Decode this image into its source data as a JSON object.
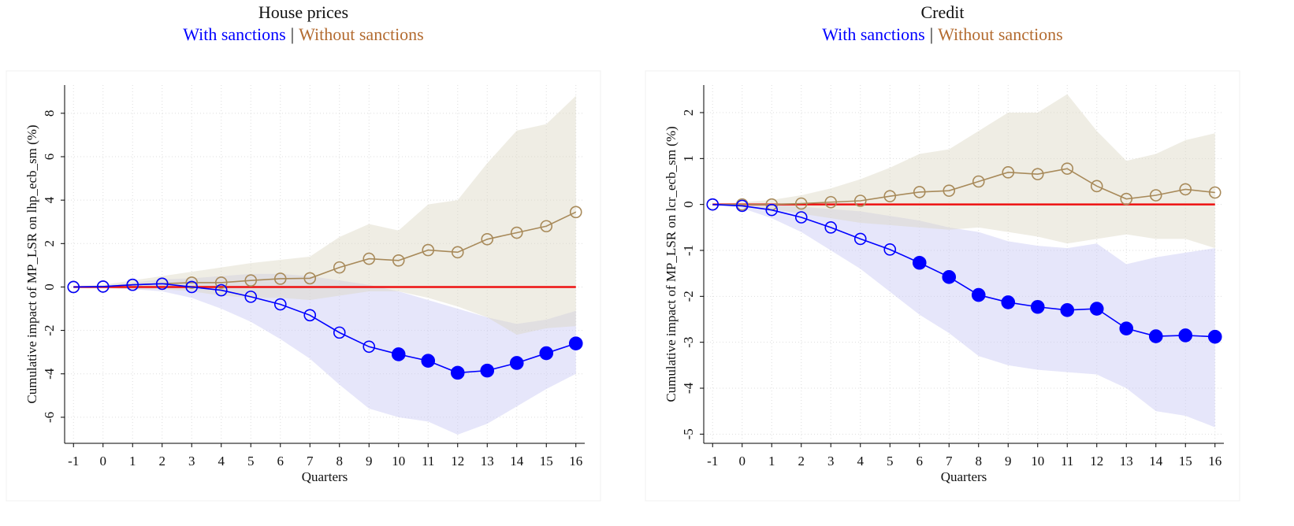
{
  "chart_data": [
    {
      "type": "line",
      "title": "House prices",
      "legend_separator": "|",
      "xlabel": "Quarters",
      "ylabel": "Cumulative impact of MP_LSR on lhp_ecb_sm (%)",
      "x": [
        -1,
        0,
        1,
        2,
        3,
        4,
        5,
        6,
        7,
        8,
        9,
        10,
        11,
        12,
        13,
        14,
        15,
        16
      ],
      "xlim": [
        -1.3,
        16.3
      ],
      "xticks": [
        -1,
        0,
        1,
        2,
        3,
        4,
        5,
        6,
        7,
        8,
        9,
        10,
        11,
        12,
        13,
        14,
        15,
        16
      ],
      "ylim": [
        -7.2,
        9.3
      ],
      "yticks": [
        -6,
        -4,
        -2,
        0,
        2,
        4,
        6,
        8
      ],
      "grid": true,
      "reference_line": {
        "value": 0,
        "color": "#ee1111"
      },
      "series": [
        {
          "name": "With sanctions",
          "color": "#0000ff",
          "band_color": "#c8c8f4",
          "values": [
            0,
            0.02,
            0.1,
            0.15,
            0,
            -0.15,
            -0.45,
            -0.8,
            -1.3,
            -2.1,
            -2.75,
            -3.1,
            -3.4,
            -3.95,
            -3.85,
            -3.5,
            -3.05,
            -2.6
          ],
          "filled": [
            false,
            false,
            false,
            false,
            false,
            false,
            false,
            false,
            false,
            false,
            false,
            true,
            true,
            true,
            true,
            true,
            true,
            true
          ],
          "upper": [
            0,
            0.05,
            0.2,
            0.35,
            0.4,
            0.5,
            0.6,
            0.6,
            0.5,
            0.3,
            0.1,
            -0.2,
            -0.6,
            -1,
            -1.4,
            -1.7,
            -1.5,
            -1.1
          ],
          "lower": [
            0,
            -0.05,
            -0.1,
            -0.2,
            -0.5,
            -1,
            -1.6,
            -2.4,
            -3.3,
            -4.5,
            -5.6,
            -6,
            -6.2,
            -6.8,
            -6.3,
            -5.5,
            -4.7,
            -4
          ]
        },
        {
          "name": "Without sanctions",
          "color": "#a88a5a",
          "text_color": "#b36b30",
          "band_color": "#dcd8c4",
          "values": [
            0,
            0.02,
            0.1,
            0.15,
            0.2,
            0.2,
            0.3,
            0.38,
            0.4,
            0.9,
            1.3,
            1.22,
            1.7,
            1.6,
            2.2,
            2.5,
            2.8,
            3.45
          ],
          "filled": [
            false,
            false,
            false,
            false,
            false,
            false,
            false,
            false,
            false,
            false,
            false,
            false,
            false,
            false,
            false,
            false,
            false,
            false
          ],
          "upper": [
            0,
            0.1,
            0.3,
            0.5,
            0.7,
            0.9,
            1.1,
            1.25,
            1.4,
            2.3,
            2.9,
            2.6,
            3.8,
            4,
            5.7,
            7.2,
            7.5,
            8.8
          ],
          "lower": [
            0,
            -0.05,
            -0.1,
            -0.1,
            -0.2,
            -0.4,
            -0.5,
            -0.5,
            -0.6,
            -0.4,
            -0.2,
            -0.2,
            -0.5,
            -0.9,
            -1.4,
            -2.2,
            -1.9,
            -1.8
          ]
        }
      ]
    },
    {
      "type": "line",
      "title": "Credit",
      "legend_separator": "|",
      "xlabel": "Quarters",
      "ylabel": "Cumulative impact of MP_LSR on lcr_ecb_sm (%)",
      "x": [
        -1,
        0,
        1,
        2,
        3,
        4,
        5,
        6,
        7,
        8,
        9,
        10,
        11,
        12,
        13,
        14,
        15,
        16
      ],
      "xlim": [
        -1.3,
        16.3
      ],
      "xticks": [
        -1,
        0,
        1,
        2,
        3,
        4,
        5,
        6,
        7,
        8,
        9,
        10,
        11,
        12,
        13,
        14,
        15,
        16
      ],
      "ylim": [
        -5.2,
        2.6
      ],
      "yticks": [
        -5,
        -4,
        -3,
        -2,
        -1,
        0,
        1,
        2
      ],
      "grid": true,
      "reference_line": {
        "value": 0,
        "color": "#ee1111"
      },
      "series": [
        {
          "name": "With sanctions",
          "color": "#0000ff",
          "band_color": "#c8c8f4",
          "values": [
            0,
            -0.03,
            -0.12,
            -0.28,
            -0.5,
            -0.75,
            -0.98,
            -1.27,
            -1.58,
            -1.97,
            -2.13,
            -2.23,
            -2.3,
            -2.27,
            -2.7,
            -2.87,
            -2.85,
            -2.88
          ],
          "filled": [
            false,
            false,
            false,
            false,
            false,
            false,
            false,
            true,
            true,
            true,
            true,
            true,
            true,
            true,
            true,
            true,
            true,
            true
          ],
          "upper": [
            0,
            0.02,
            0,
            -0.05,
            -0.1,
            -0.15,
            -0.25,
            -0.35,
            -0.5,
            -0.6,
            -0.8,
            -0.9,
            -0.95,
            -0.85,
            -1.3,
            -1.15,
            -1.05,
            -0.95
          ],
          "lower": [
            0,
            -0.08,
            -0.3,
            -0.6,
            -1,
            -1.4,
            -1.9,
            -2.4,
            -2.8,
            -3.3,
            -3.5,
            -3.6,
            -3.65,
            -3.7,
            -4,
            -4.5,
            -4.6,
            -4.85
          ]
        },
        {
          "name": "Without sanctions",
          "color": "#a88a5a",
          "text_color": "#b36b30",
          "band_color": "#dcd8c4",
          "values": [
            0,
            0,
            0,
            0.02,
            0.05,
            0.08,
            0.18,
            0.27,
            0.3,
            0.5,
            0.7,
            0.66,
            0.78,
            0.4,
            0.12,
            0.2,
            0.33,
            0.26
          ],
          "filled": [
            false,
            false,
            false,
            false,
            false,
            false,
            false,
            false,
            false,
            false,
            false,
            false,
            false,
            false,
            false,
            false,
            false,
            false
          ],
          "upper": [
            0,
            0.05,
            0.1,
            0.2,
            0.35,
            0.55,
            0.8,
            1.1,
            1.2,
            1.6,
            2,
            2,
            2.4,
            1.6,
            0.95,
            1.1,
            1.4,
            1.55
          ],
          "lower": [
            0,
            -0.05,
            -0.1,
            -0.2,
            -0.3,
            -0.4,
            -0.45,
            -0.5,
            -0.55,
            -0.5,
            -0.6,
            -0.7,
            -0.85,
            -0.75,
            -0.65,
            -0.75,
            -0.75,
            -0.95
          ]
        }
      ]
    }
  ]
}
